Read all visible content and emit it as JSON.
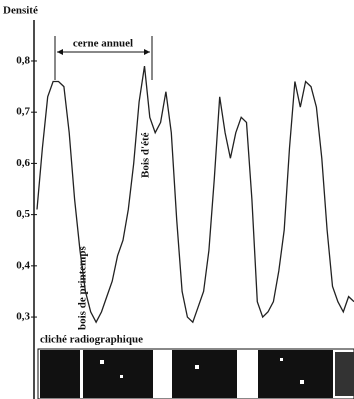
{
  "chart_data": {
    "type": "line",
    "title": "Densité",
    "annotations": [
      "cerne annuel",
      "bois de printemps",
      "Bois d'été",
      "cliché radiographique"
    ],
    "color": "#222",
    "values": [
      0.51,
      0.63,
      0.73,
      0.76,
      0.76,
      0.75,
      0.66,
      0.53,
      0.43,
      0.35,
      0.31,
      0.29,
      0.31,
      0.34,
      0.37,
      0.42,
      0.45,
      0.51,
      0.6,
      0.72,
      0.79,
      0.69,
      0.66,
      0.68,
      0.74,
      0.66,
      0.49,
      0.35,
      0.3,
      0.29,
      0.32,
      0.35,
      0.43,
      0.57,
      0.73,
      0.66,
      0.61,
      0.66,
      0.69,
      0.68,
      0.53,
      0.33,
      0.3,
      0.31,
      0.33,
      0.39,
      0.47,
      0.63,
      0.76,
      0.71,
      0.76,
      0.75,
      0.71,
      0.61,
      0.47,
      0.36,
      0.33,
      0.31,
      0.34,
      0.33
    ],
    "ylim": [
      0.14,
      0.88
    ],
    "yticks": [
      {
        "value": 0.3,
        "label": "0,3"
      },
      {
        "value": 0.4,
        "label": "0,4"
      },
      {
        "value": 0.5,
        "label": "0,5"
      },
      {
        "value": 0.6,
        "label": "0,6"
      },
      {
        "value": 0.7,
        "label": "0,7"
      },
      {
        "value": 0.8,
        "label": "0,8"
      }
    ]
  }
}
